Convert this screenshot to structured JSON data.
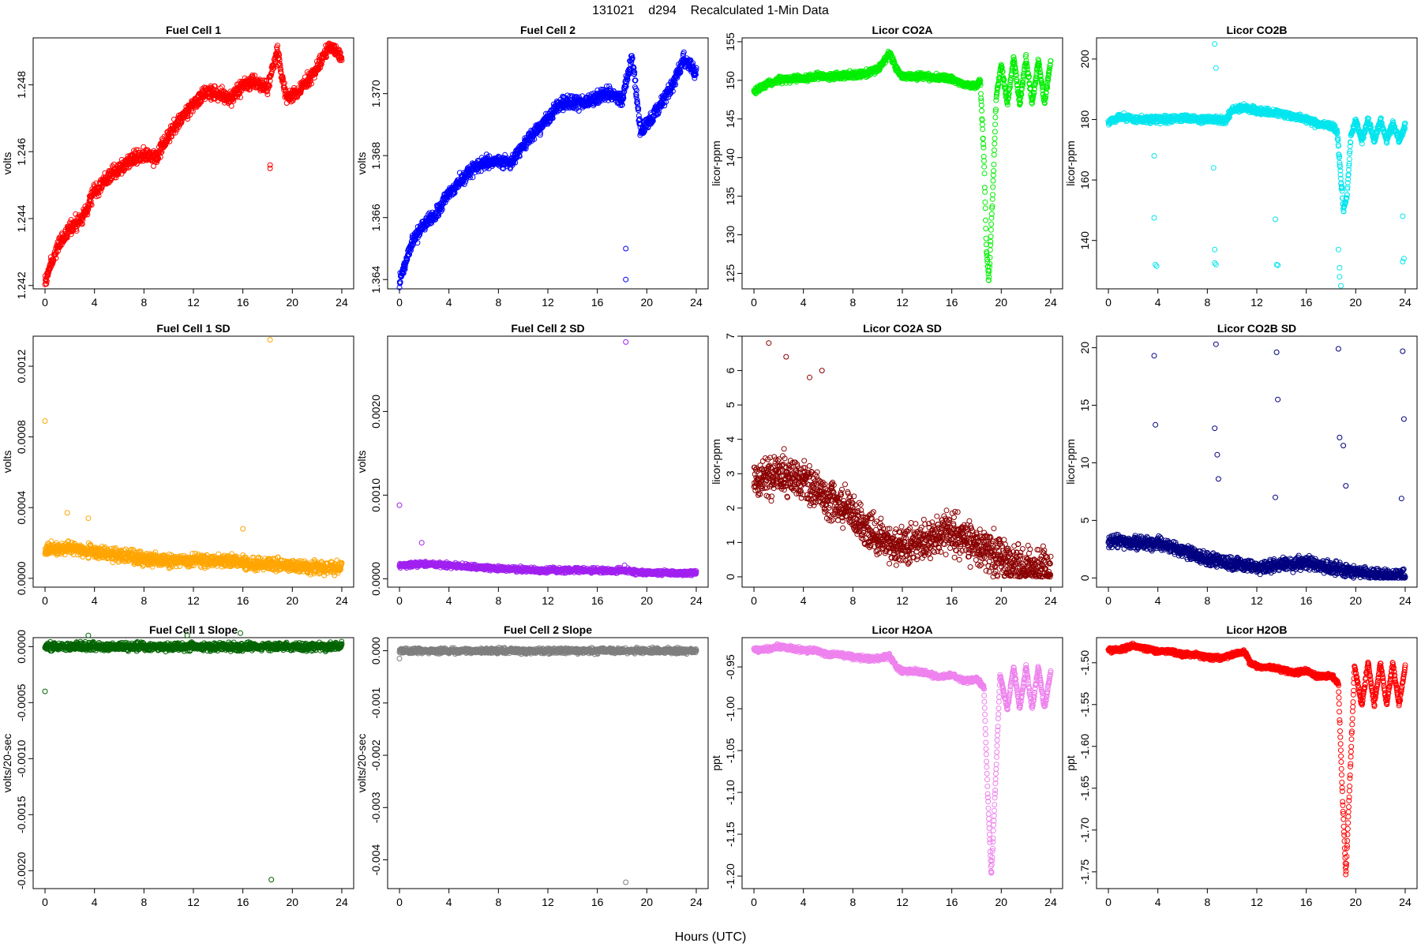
{
  "page_title": "131021    d294    Recalculated 1-Min Data",
  "x_axis_title": "Hours (UTC)",
  "chart_data": [
    {
      "type": "scatter",
      "title": "Fuel Cell 1",
      "xlabel": "",
      "ylabel": "volts",
      "xlim": [
        0,
        24
      ],
      "ylim": [
        1.2419,
        1.2494
      ],
      "x_ticks": [
        0,
        4,
        8,
        12,
        16,
        20,
        24
      ],
      "y_ticks": [
        1.242,
        1.244,
        1.246,
        1.248
      ],
      "y_tick_labels": [
        "1.242",
        "1.244",
        "1.246",
        "1.248"
      ],
      "color": "#ff0000",
      "trend": {
        "x": [
          0,
          1,
          2,
          3,
          4,
          5,
          6,
          7,
          8,
          9,
          10,
          11,
          12,
          13,
          14,
          15,
          16,
          17,
          18,
          18.8,
          19.5,
          20.5,
          22,
          23,
          24
        ],
        "y": [
          1.2421,
          1.2432,
          1.2437,
          1.244,
          1.2448,
          1.2452,
          1.2455,
          1.2458,
          1.2459,
          1.2458,
          1.2465,
          1.247,
          1.2474,
          1.2478,
          1.2477,
          1.2476,
          1.248,
          1.2481,
          1.2479,
          1.249,
          1.2476,
          1.2478,
          1.2485,
          1.2492,
          1.2488
        ]
      },
      "noise": 0.0003,
      "outliers": [
        [
          18.2,
          1.2456
        ],
        [
          18.2,
          1.2455
        ]
      ]
    },
    {
      "type": "scatter",
      "title": "Fuel Cell 2",
      "xlabel": "",
      "ylabel": "volts",
      "xlim": [
        0,
        24
      ],
      "ylim": [
        1.3637,
        1.3718
      ],
      "x_ticks": [
        0,
        4,
        8,
        12,
        16,
        20,
        24
      ],
      "y_ticks": [
        1.364,
        1.366,
        1.368,
        1.37
      ],
      "y_tick_labels": [
        "1.364",
        "1.366",
        "1.368",
        "1.370"
      ],
      "color": "#0000ff",
      "trend": {
        "x": [
          0,
          1,
          2,
          3,
          4,
          5,
          6,
          7,
          8,
          9,
          10,
          11,
          12,
          13,
          14,
          15,
          16,
          17,
          18,
          18.8,
          19.5,
          20.5,
          22,
          23,
          24
        ],
        "y": [
          1.3639,
          1.3652,
          1.3658,
          1.3661,
          1.3668,
          1.3672,
          1.3676,
          1.3678,
          1.3678,
          1.3678,
          1.3683,
          1.3688,
          1.3692,
          1.3697,
          1.3697,
          1.3697,
          1.3699,
          1.37,
          1.3698,
          1.3712,
          1.3688,
          1.3693,
          1.3702,
          1.3711,
          1.3707
        ]
      },
      "noise": 0.0003,
      "outliers": [
        [
          18.3,
          1.365
        ],
        [
          18.3,
          1.364
        ]
      ]
    },
    {
      "type": "scatter",
      "title": "Licor CO2A",
      "xlabel": "",
      "ylabel": "licor-ppm",
      "xlim": [
        0,
        24
      ],
      "ylim": [
        123,
        155.5
      ],
      "x_ticks": [
        0,
        4,
        8,
        12,
        16,
        20,
        24
      ],
      "y_ticks": [
        125,
        130,
        135,
        140,
        145,
        150,
        155
      ],
      "y_tick_labels": [
        "125",
        "130",
        "135",
        "140",
        "145",
        "150",
        "155"
      ],
      "color": "#00ee00",
      "trend": {
        "x": [
          0,
          1,
          2,
          3,
          4,
          5,
          6,
          7,
          8,
          9,
          10,
          10.5,
          11,
          11.5,
          12,
          14,
          16,
          17,
          18,
          18.3,
          18.6,
          18.8,
          19,
          19.3,
          19.6,
          20,
          20.5,
          21,
          21.5,
          22,
          22.5,
          23,
          23.5,
          24
        ],
        "y": [
          148.5,
          149.5,
          150,
          150.2,
          150.3,
          150.5,
          150.5,
          150.6,
          150.7,
          150.8,
          151.5,
          152.5,
          153.5,
          151.5,
          150.5,
          150.5,
          150.2,
          149.5,
          149.3,
          150,
          140,
          128,
          124,
          135,
          148,
          152,
          147,
          153,
          147,
          153,
          147,
          152.5,
          147,
          152.5
        ]
      },
      "noise": 0.6,
      "outliers": []
    },
    {
      "type": "scatter",
      "title": "Licor CO2B",
      "xlabel": "",
      "ylabel": "licor-ppm",
      "xlim": [
        0,
        24
      ],
      "ylim": [
        124,
        207
      ],
      "x_ticks": [
        0,
        4,
        8,
        12,
        16,
        20,
        24
      ],
      "y_ticks": [
        140,
        160,
        180,
        200
      ],
      "y_tick_labels": [
        "140",
        "160",
        "180",
        "200"
      ],
      "color": "#00e5ee",
      "trend": {
        "x": [
          0,
          1,
          2,
          4,
          6,
          8,
          9,
          9.5,
          10,
          11,
          12,
          14,
          16,
          17,
          18,
          18.5,
          19,
          19.3,
          19.6,
          20,
          20.5,
          21,
          21.5,
          22,
          22.5,
          23,
          23.5,
          24
        ],
        "y": [
          179,
          181,
          180,
          180,
          180.5,
          180,
          180,
          179.5,
          183.5,
          184,
          183,
          182,
          180,
          178.5,
          178,
          176,
          150,
          155,
          174,
          180,
          173,
          180,
          173,
          180,
          173,
          179,
          173,
          178
        ]
      },
      "noise": 1.6,
      "outliers": [
        [
          3.7,
          147.5
        ],
        [
          3.8,
          132
        ],
        [
          3.9,
          131.5
        ],
        [
          3.7,
          168
        ],
        [
          8.6,
          205
        ],
        [
          8.7,
          197
        ],
        [
          8.5,
          164
        ],
        [
          8.6,
          137
        ],
        [
          8.6,
          132.5
        ],
        [
          8.7,
          132
        ],
        [
          13.5,
          147
        ],
        [
          13.6,
          132
        ],
        [
          13.7,
          131.8
        ],
        [
          18.6,
          137
        ],
        [
          18.7,
          131
        ],
        [
          18.7,
          128
        ],
        [
          18.8,
          125
        ],
        [
          23.8,
          148
        ],
        [
          23.9,
          134
        ],
        [
          23.8,
          133
        ]
      ]
    },
    {
      "type": "scatter",
      "title": "Fuel Cell 1 SD",
      "xlabel": "",
      "ylabel": "volts",
      "xlim": [
        0,
        24
      ],
      "ylim": [
        -5e-05,
        0.00137
      ],
      "x_ticks": [
        0,
        4,
        8,
        12,
        16,
        20,
        24
      ],
      "y_ticks": [
        0,
        0.0004,
        0.0008,
        0.0012
      ],
      "y_tick_labels": [
        "0.0000",
        "0.0004",
        "0.0008",
        "0.0012"
      ],
      "color": "#ffa500",
      "trend": {
        "x": [
          0,
          2,
          4,
          6,
          8,
          10,
          12,
          14,
          16,
          18,
          20,
          22,
          24
        ],
        "y": [
          0.00016,
          0.00017,
          0.00015,
          0.00013,
          0.00011,
          0.0001,
          0.0001,
          0.0001,
          9e-05,
          8e-05,
          7e-05,
          6e-05,
          6e-05
        ]
      },
      "noise": 5e-05,
      "outliers": [
        [
          0,
          0.00089
        ],
        [
          18.2,
          0.00135
        ],
        [
          16,
          0.00028
        ],
        [
          1.8,
          0.00037
        ],
        [
          3.5,
          0.00034
        ]
      ]
    },
    {
      "type": "scatter",
      "title": "Fuel Cell 2 SD",
      "xlabel": "",
      "ylabel": "volts",
      "xlim": [
        0,
        24
      ],
      "ylim": [
        -0.0001,
        0.0029
      ],
      "x_ticks": [
        0,
        4,
        8,
        12,
        16,
        20,
        24
      ],
      "y_ticks": [
        0,
        0.001,
        0.002
      ],
      "y_tick_labels": [
        "0.0000",
        "0.0010",
        "0.0020"
      ],
      "color": "#a020f0",
      "trend": {
        "x": [
          0,
          2,
          4,
          6,
          8,
          10,
          12,
          14,
          16,
          18,
          20,
          22,
          24
        ],
        "y": [
          0.00016,
          0.00018,
          0.00016,
          0.00014,
          0.00012,
          0.00011,
          0.0001,
          0.0001,
          0.0001,
          0.0001,
          7e-05,
          7e-05,
          7e-05
        ]
      },
      "noise": 4e-05,
      "outliers": [
        [
          0,
          0.00088
        ],
        [
          18.3,
          0.00283
        ],
        [
          1.8,
          0.00043
        ],
        [
          18.2,
          0.00016
        ]
      ]
    },
    {
      "type": "scatter",
      "title": "Licor CO2A SD",
      "xlabel": "",
      "ylabel": "licor-ppm",
      "xlim": [
        0,
        24
      ],
      "ylim": [
        -0.3,
        7
      ],
      "x_ticks": [
        0,
        4,
        8,
        12,
        16,
        20,
        24
      ],
      "y_ticks": [
        0,
        1,
        2,
        3,
        4,
        5,
        6,
        7
      ],
      "y_tick_labels": [
        "0",
        "1",
        "2",
        "3",
        "4",
        "5",
        "6",
        "7"
      ],
      "color": "#8b0000",
      "trend": {
        "x": [
          0,
          2,
          4,
          6,
          8,
          10,
          12,
          14,
          16,
          18,
          20,
          22,
          24
        ],
        "y": [
          2.8,
          3,
          2.8,
          2.3,
          1.8,
          1,
          0.9,
          1.1,
          1.3,
          0.9,
          0.5,
          0.3,
          0.2
        ]
      },
      "noise": 0.8,
      "outliers": [
        [
          1.2,
          6.8
        ],
        [
          5.5,
          6
        ],
        [
          2.6,
          6.4
        ],
        [
          4.5,
          5.8
        ]
      ]
    },
    {
      "type": "scatter",
      "title": "Licor CO2B SD",
      "xlabel": "",
      "ylabel": "licor-ppm",
      "xlim": [
        0,
        24
      ],
      "ylim": [
        -0.8,
        21
      ],
      "x_ticks": [
        0,
        4,
        8,
        12,
        16,
        20,
        24
      ],
      "y_ticks": [
        0,
        5,
        10,
        15,
        20
      ],
      "y_tick_labels": [
        "0",
        "5",
        "10",
        "15",
        "20"
      ],
      "color": "#000080",
      "trend": {
        "x": [
          0,
          2,
          4,
          6,
          8,
          10,
          12,
          14,
          16,
          18,
          20,
          22,
          24
        ],
        "y": [
          3.2,
          3.1,
          3,
          2.4,
          1.7,
          1.2,
          1,
          1.1,
          1.3,
          0.9,
          0.5,
          0.3,
          0.2
        ]
      },
      "noise": 0.8,
      "outliers": [
        [
          3.7,
          19.3
        ],
        [
          3.8,
          13.3
        ],
        [
          8.7,
          20.3
        ],
        [
          8.6,
          13
        ],
        [
          8.8,
          10.7
        ],
        [
          8.9,
          8.6
        ],
        [
          13.6,
          19.6
        ],
        [
          13.7,
          15.5
        ],
        [
          13.5,
          7
        ],
        [
          18.6,
          19.9
        ],
        [
          18.7,
          12.2
        ],
        [
          19,
          11.5
        ],
        [
          19.2,
          8
        ],
        [
          23.8,
          19.7
        ],
        [
          23.9,
          13.8
        ],
        [
          23.7,
          6.9
        ]
      ]
    },
    {
      "type": "scatter",
      "title": "Fuel Cell 1 Slope",
      "xlabel": "",
      "ylabel": "volts/20-sec",
      "xlim": [
        0,
        24
      ],
      "ylim": [
        -0.00216,
        8e-05
      ],
      "x_ticks": [
        0,
        4,
        8,
        12,
        16,
        20,
        24
      ],
      "y_ticks": [
        0,
        -0.0005,
        -0.001,
        -0.0015,
        -0.002
      ],
      "y_tick_labels": [
        "0.0000",
        "-0.0005",
        "-0.0010",
        "-0.0015",
        "-0.0020"
      ],
      "color": "#006400",
      "trend": {
        "x": [
          0,
          24
        ],
        "y": [
          0,
          0
        ]
      },
      "noise": 5e-05,
      "outliers": [
        [
          0,
          -0.0004
        ],
        [
          18.3,
          -0.00208
        ],
        [
          15.8,
          0.00012
        ],
        [
          3.5,
          0.0001
        ],
        [
          11.5,
          0.0001
        ]
      ]
    },
    {
      "type": "scatter",
      "title": "Fuel Cell 2 Slope",
      "xlabel": "",
      "ylabel": "volts/20-sec",
      "xlim": [
        0,
        24
      ],
      "ylim": [
        -0.00455,
        0.00025
      ],
      "x_ticks": [
        0,
        4,
        8,
        12,
        16,
        20,
        24
      ],
      "y_ticks": [
        0,
        -0.001,
        -0.002,
        -0.003,
        -0.004
      ],
      "y_tick_labels": [
        "0.000",
        "-0.001",
        "-0.002",
        "-0.003",
        "-0.004"
      ],
      "color": "#7f7f7f",
      "trend": {
        "x": [
          0,
          24
        ],
        "y": [
          0,
          0
        ]
      },
      "noise": 7e-05,
      "outliers": [
        [
          18.3,
          -0.00443
        ],
        [
          0,
          -0.00015
        ]
      ]
    },
    {
      "type": "scatter",
      "title": "Licor H2OA",
      "xlabel": "",
      "ylabel": "ppt",
      "xlim": [
        0,
        24
      ],
      "ylim": [
        -1.215,
        -0.915
      ],
      "x_ticks": [
        0,
        4,
        8,
        12,
        16,
        20,
        24
      ],
      "y_ticks": [
        -0.95,
        -1,
        -1.05,
        -1.1,
        -1.15,
        -1.2
      ],
      "y_tick_labels": [
        "-0.95",
        "-1.00",
        "-1.05",
        "-1.10",
        "-1.15",
        "-1.20"
      ],
      "color": "#ee82ee",
      "trend": {
        "x": [
          0,
          1,
          2,
          3,
          4,
          5,
          6,
          7,
          8,
          9,
          10,
          11,
          11.5,
          12,
          13,
          14,
          15,
          16,
          17,
          18,
          18.6,
          18.9,
          19.2,
          19.5,
          19.9,
          20.5,
          21,
          21.5,
          22,
          22.5,
          23,
          23.5,
          24
        ],
        "y": [
          -0.93,
          -0.929,
          -0.925,
          -0.928,
          -0.93,
          -0.93,
          -0.935,
          -0.935,
          -0.938,
          -0.94,
          -0.94,
          -0.937,
          -0.95,
          -0.955,
          -0.955,
          -0.958,
          -0.962,
          -0.96,
          -0.967,
          -0.965,
          -0.975,
          -1.1,
          -1.2,
          -1.1,
          -0.96,
          -1.0,
          -0.95,
          -1.0,
          -0.95,
          -1.0,
          -0.95,
          -1.0,
          -0.955
        ]
      },
      "noise": 0.004,
      "outliers": []
    },
    {
      "type": "scatter",
      "title": "Licor H2OB",
      "xlabel": "",
      "ylabel": "ppt",
      "xlim": [
        0,
        24
      ],
      "ylim": [
        -1.77,
        -1.47
      ],
      "x_ticks": [
        0,
        4,
        8,
        12,
        16,
        20,
        24
      ],
      "y_ticks": [
        -1.5,
        -1.55,
        -1.6,
        -1.65,
        -1.7,
        -1.75
      ],
      "y_tick_labels": [
        "-1.50",
        "-1.55",
        "-1.60",
        "-1.65",
        "-1.70",
        "-1.75"
      ],
      "color": "#ff0000",
      "trend": {
        "x": [
          0,
          1,
          2,
          3,
          4,
          5,
          6,
          7,
          8,
          9,
          10,
          11,
          11.5,
          12,
          13,
          14,
          15,
          16,
          17,
          18,
          18.6,
          18.9,
          19.2,
          19.5,
          19.9,
          20.5,
          21,
          21.5,
          22,
          22.5,
          23,
          23.5,
          24
        ],
        "y": [
          -1.485,
          -1.484,
          -1.48,
          -1.483,
          -1.486,
          -1.486,
          -1.49,
          -1.49,
          -1.493,
          -1.495,
          -1.49,
          -1.487,
          -1.5,
          -1.505,
          -1.505,
          -1.508,
          -1.512,
          -1.51,
          -1.517,
          -1.515,
          -1.525,
          -1.65,
          -1.755,
          -1.65,
          -1.505,
          -1.55,
          -1.5,
          -1.55,
          -1.5,
          -1.55,
          -1.5,
          -1.55,
          -1.505
        ]
      },
      "noise": 0.004,
      "outliers": []
    }
  ]
}
